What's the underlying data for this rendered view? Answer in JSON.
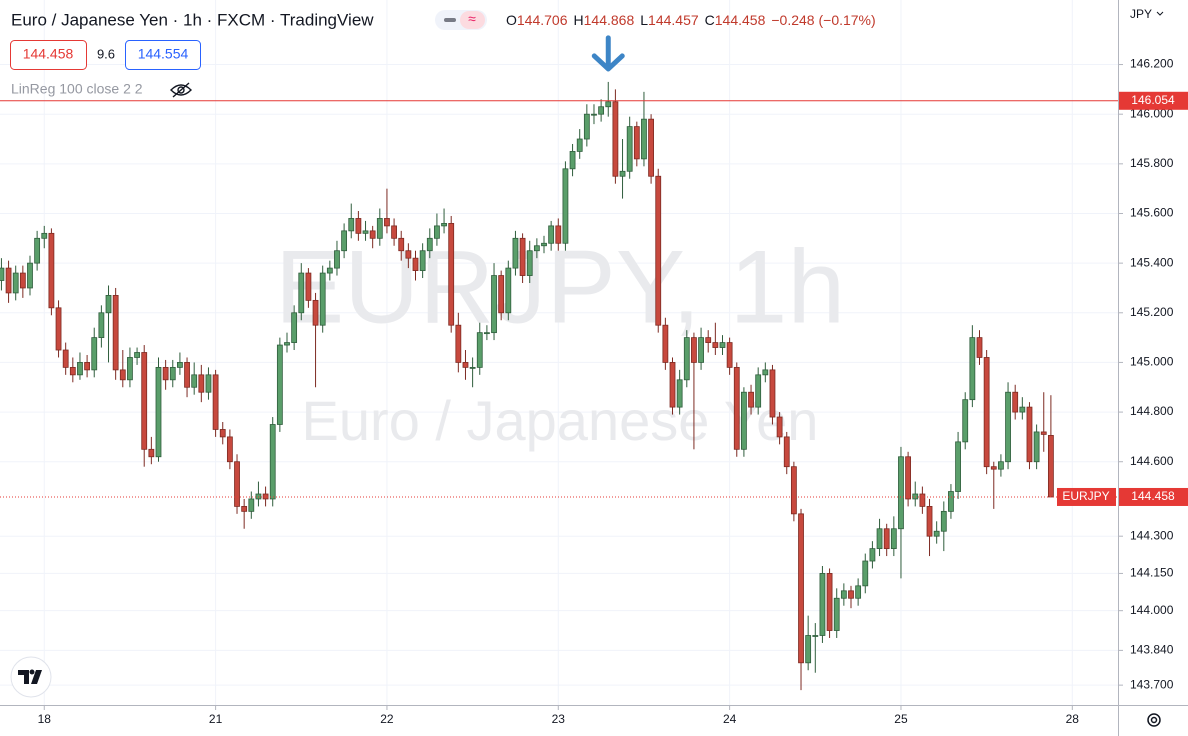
{
  "chart_data": {
    "type": "candlestick",
    "title": "Euro / Japanese Yen · 1h · FXCM · TradingView",
    "watermark": "EURJPY, 1h",
    "watermark_subtitle": "Euro / Japanese Yen",
    "symbol": "EURJPY",
    "legend": {
      "labels": [
        "O",
        "H",
        "L",
        "C"
      ],
      "change": "−0.248 (−0.17%)"
    },
    "up_color": "#5a9e6a",
    "down_color": "#c7493e",
    "open": [
      145.33,
      145.38,
      145.28,
      145.36,
      145.3,
      145.4,
      145.5,
      145.52,
      145.22,
      145.05,
      144.98,
      144.95,
      145.0,
      144.97,
      145.1,
      145.2,
      145.27,
      144.97,
      144.93,
      145.02,
      145.04,
      144.65,
      144.62,
      144.98,
      144.93,
      144.98,
      145.0,
      144.9,
      144.95,
      144.88,
      144.95,
      144.73,
      144.7,
      144.6,
      144.42,
      144.4,
      144.45,
      144.47,
      144.45,
      144.75,
      145.07,
      145.08,
      145.2,
      145.36,
      145.25,
      145.15,
      145.36,
      145.38,
      145.45,
      145.53,
      145.58,
      145.52,
      145.53,
      145.5,
      145.58,
      145.55,
      145.5,
      145.45,
      145.42,
      145.37,
      145.45,
      145.5,
      145.55,
      145.56,
      145.15,
      145.0,
      144.98,
      144.98,
      145.12,
      145.12,
      145.35,
      145.2,
      145.38,
      145.5,
      145.35,
      145.45,
      145.47,
      145.48,
      145.55,
      145.48,
      145.78,
      145.85,
      145.9,
      146.0,
      146.0,
      146.03,
      146.05,
      145.75,
      145.77,
      145.95,
      145.82,
      145.98,
      145.75,
      145.15,
      145.0,
      144.82,
      144.93,
      145.1,
      145.0,
      145.1,
      145.08,
      145.06,
      145.08,
      144.98,
      144.65,
      144.88,
      144.82,
      144.95,
      144.97,
      144.78,
      144.7,
      144.58,
      144.39,
      143.79,
      143.9,
      143.9,
      144.15,
      143.92,
      144.05,
      144.08,
      144.05,
      144.1,
      144.2,
      144.25,
      144.33,
      144.25,
      144.33,
      144.62,
      144.45,
      144.47,
      144.42,
      144.3,
      144.32,
      144.4,
      144.48,
      144.68,
      144.85,
      145.1,
      145.02,
      144.58,
      144.57,
      144.6,
      144.88,
      144.8,
      144.82,
      144.6,
      144.72,
      144.706
    ],
    "high": [
      145.42,
      145.41,
      145.39,
      145.39,
      145.43,
      145.53,
      145.55,
      145.54,
      145.25,
      145.08,
      145.02,
      145.04,
      145.03,
      145.14,
      145.23,
      145.31,
      145.3,
      145.05,
      145.06,
      145.06,
      145.07,
      144.7,
      145.02,
      145.01,
      145.01,
      145.04,
      145.02,
      145.0,
      144.99,
      144.98,
      144.97,
      144.76,
      144.73,
      144.63,
      144.45,
      144.48,
      144.52,
      144.5,
      144.78,
      145.1,
      145.12,
      145.23,
      145.4,
      145.38,
      145.28,
      145.39,
      145.41,
      145.49,
      145.56,
      145.64,
      145.61,
      145.57,
      145.55,
      145.62,
      145.7,
      145.58,
      145.53,
      145.48,
      145.45,
      145.48,
      145.54,
      145.6,
      145.62,
      145.59,
      145.2,
      145.05,
      145.02,
      145.16,
      145.15,
      145.4,
      145.37,
      145.41,
      145.53,
      145.52,
      145.49,
      145.5,
      145.51,
      145.57,
      145.58,
      145.81,
      145.88,
      145.94,
      146.04,
      146.04,
      146.06,
      146.13,
      146.1,
      145.9,
      145.99,
      145.97,
      146.09,
      146.0,
      145.78,
      145.18,
      145.02,
      144.97,
      145.13,
      145.12,
      145.14,
      145.13,
      145.16,
      145.11,
      145.1,
      145.0,
      144.9,
      144.91,
      144.98,
      145.0,
      144.99,
      144.8,
      144.72,
      144.6,
      144.41,
      143.98,
      143.95,
      144.18,
      144.17,
      144.09,
      144.11,
      144.1,
      144.13,
      144.23,
      144.28,
      144.37,
      144.35,
      144.38,
      144.66,
      144.64,
      144.52,
      144.5,
      144.45,
      144.36,
      144.44,
      144.51,
      144.72,
      144.88,
      145.15,
      145.13,
      145.05,
      144.6,
      144.63,
      144.92,
      144.91,
      144.86,
      144.84,
      144.75,
      144.88,
      144.868
    ],
    "low": [
      145.29,
      145.24,
      145.25,
      145.26,
      145.27,
      145.37,
      145.46,
      145.19,
      145.02,
      144.95,
      144.92,
      144.93,
      144.94,
      144.94,
      145.06,
      145.0,
      144.93,
      144.9,
      144.9,
      144.99,
      144.58,
      144.59,
      144.6,
      144.89,
      144.9,
      144.95,
      144.86,
      144.87,
      144.84,
      144.85,
      144.7,
      144.67,
      144.57,
      144.39,
      144.33,
      144.37,
      144.42,
      144.42,
      144.42,
      144.72,
      145.04,
      145.05,
      145.17,
      145.22,
      144.9,
      145.12,
      145.33,
      145.35,
      145.42,
      145.5,
      145.49,
      145.49,
      145.46,
      145.47,
      145.52,
      145.47,
      145.41,
      145.38,
      145.33,
      145.34,
      145.42,
      145.47,
      145.52,
      145.12,
      144.96,
      144.93,
      144.9,
      144.95,
      145.09,
      145.09,
      145.17,
      145.17,
      145.35,
      145.32,
      145.32,
      145.42,
      145.44,
      145.45,
      145.45,
      145.45,
      145.75,
      145.82,
      145.87,
      145.96,
      145.97,
      145.99,
      145.72,
      145.66,
      145.74,
      145.79,
      145.79,
      145.72,
      145.12,
      144.97,
      144.79,
      144.79,
      144.9,
      144.65,
      144.97,
      145.04,
      145.03,
      145.03,
      144.95,
      144.62,
      144.62,
      144.79,
      144.79,
      144.92,
      144.75,
      144.67,
      144.55,
      144.36,
      143.68,
      143.76,
      143.75,
      143.87,
      143.89,
      143.89,
      144.02,
      144.01,
      144.02,
      144.07,
      144.17,
      144.22,
      144.22,
      144.22,
      144.13,
      144.42,
      144.42,
      144.39,
      144.22,
      144.27,
      144.24,
      144.37,
      144.45,
      144.65,
      144.82,
      144.99,
      144.55,
      144.41,
      144.54,
      144.57,
      144.77,
      144.77,
      144.57,
      144.57,
      144.64,
      144.457
    ],
    "close": [
      145.38,
      145.28,
      145.36,
      145.3,
      145.4,
      145.5,
      145.52,
      145.22,
      145.05,
      144.98,
      144.95,
      145.0,
      144.97,
      145.1,
      145.2,
      145.27,
      144.97,
      144.93,
      145.02,
      145.04,
      144.65,
      144.62,
      144.98,
      144.93,
      144.98,
      145.0,
      144.9,
      144.95,
      144.88,
      144.95,
      144.73,
      144.7,
      144.6,
      144.42,
      144.4,
      144.45,
      144.47,
      144.45,
      144.75,
      145.07,
      145.08,
      145.2,
      145.36,
      145.25,
      145.15,
      145.36,
      145.38,
      145.45,
      145.53,
      145.58,
      145.52,
      145.53,
      145.5,
      145.58,
      145.55,
      145.5,
      145.45,
      145.42,
      145.37,
      145.45,
      145.5,
      145.55,
      145.56,
      145.15,
      145.0,
      144.98,
      144.98,
      145.12,
      145.12,
      145.35,
      145.2,
      145.38,
      145.5,
      145.35,
      145.45,
      145.47,
      145.48,
      145.55,
      145.48,
      145.78,
      145.85,
      145.9,
      146.0,
      146.0,
      146.03,
      146.05,
      145.75,
      145.77,
      145.95,
      145.82,
      145.98,
      145.75,
      145.15,
      145.0,
      144.82,
      144.93,
      145.1,
      145.0,
      145.1,
      145.08,
      145.06,
      145.08,
      144.98,
      144.65,
      144.88,
      144.82,
      144.95,
      144.97,
      144.78,
      144.7,
      144.58,
      144.39,
      143.79,
      143.9,
      143.9,
      144.15,
      143.92,
      144.05,
      144.08,
      144.05,
      144.1,
      144.2,
      144.25,
      144.33,
      144.25,
      144.33,
      144.62,
      144.45,
      144.47,
      144.42,
      144.3,
      144.32,
      144.4,
      144.48,
      144.68,
      144.85,
      145.1,
      145.02,
      144.58,
      144.57,
      144.6,
      144.88,
      144.8,
      144.82,
      144.6,
      144.72,
      144.71,
      144.458
    ],
    "hline": {
      "value": 146.054,
      "color": "#e53935"
    },
    "xlim": [
      -0.2,
      156.4
    ],
    "xticks": [
      {
        "value": 6,
        "label": "18"
      },
      {
        "value": 30,
        "label": "21"
      },
      {
        "value": 54,
        "label": "22"
      },
      {
        "value": 78,
        "label": "23"
      },
      {
        "value": 102,
        "label": "24"
      },
      {
        "value": 126,
        "label": "25"
      },
      {
        "value": 150,
        "label": "28"
      }
    ],
    "ylim": [
      143.62,
      146.46
    ],
    "yticks": [
      {
        "value": 143.7,
        "label": "143.700"
      },
      {
        "value": 143.84,
        "label": "143.840"
      },
      {
        "value": 144.0,
        "label": "144.000"
      },
      {
        "value": 144.15,
        "label": "144.150"
      },
      {
        "value": 144.3,
        "label": "144.300"
      },
      {
        "value": 144.6,
        "label": "144.600"
      },
      {
        "value": 144.8,
        "label": "144.800"
      },
      {
        "value": 145.0,
        "label": "145.000"
      },
      {
        "value": 145.2,
        "label": "145.200"
      },
      {
        "value": 145.4,
        "label": "145.400"
      },
      {
        "value": 145.6,
        "label": "145.600"
      },
      {
        "value": 145.8,
        "label": "145.800"
      },
      {
        "value": 146.0,
        "label": "146.000"
      },
      {
        "value": 146.2,
        "label": "146.200"
      }
    ],
    "grid": true
  },
  "toolbar": {
    "sell": 144.458,
    "spread": 9.6,
    "buy": 144.554,
    "indicator": "LinReg 100 close 2 2",
    "currency": "JPY"
  }
}
